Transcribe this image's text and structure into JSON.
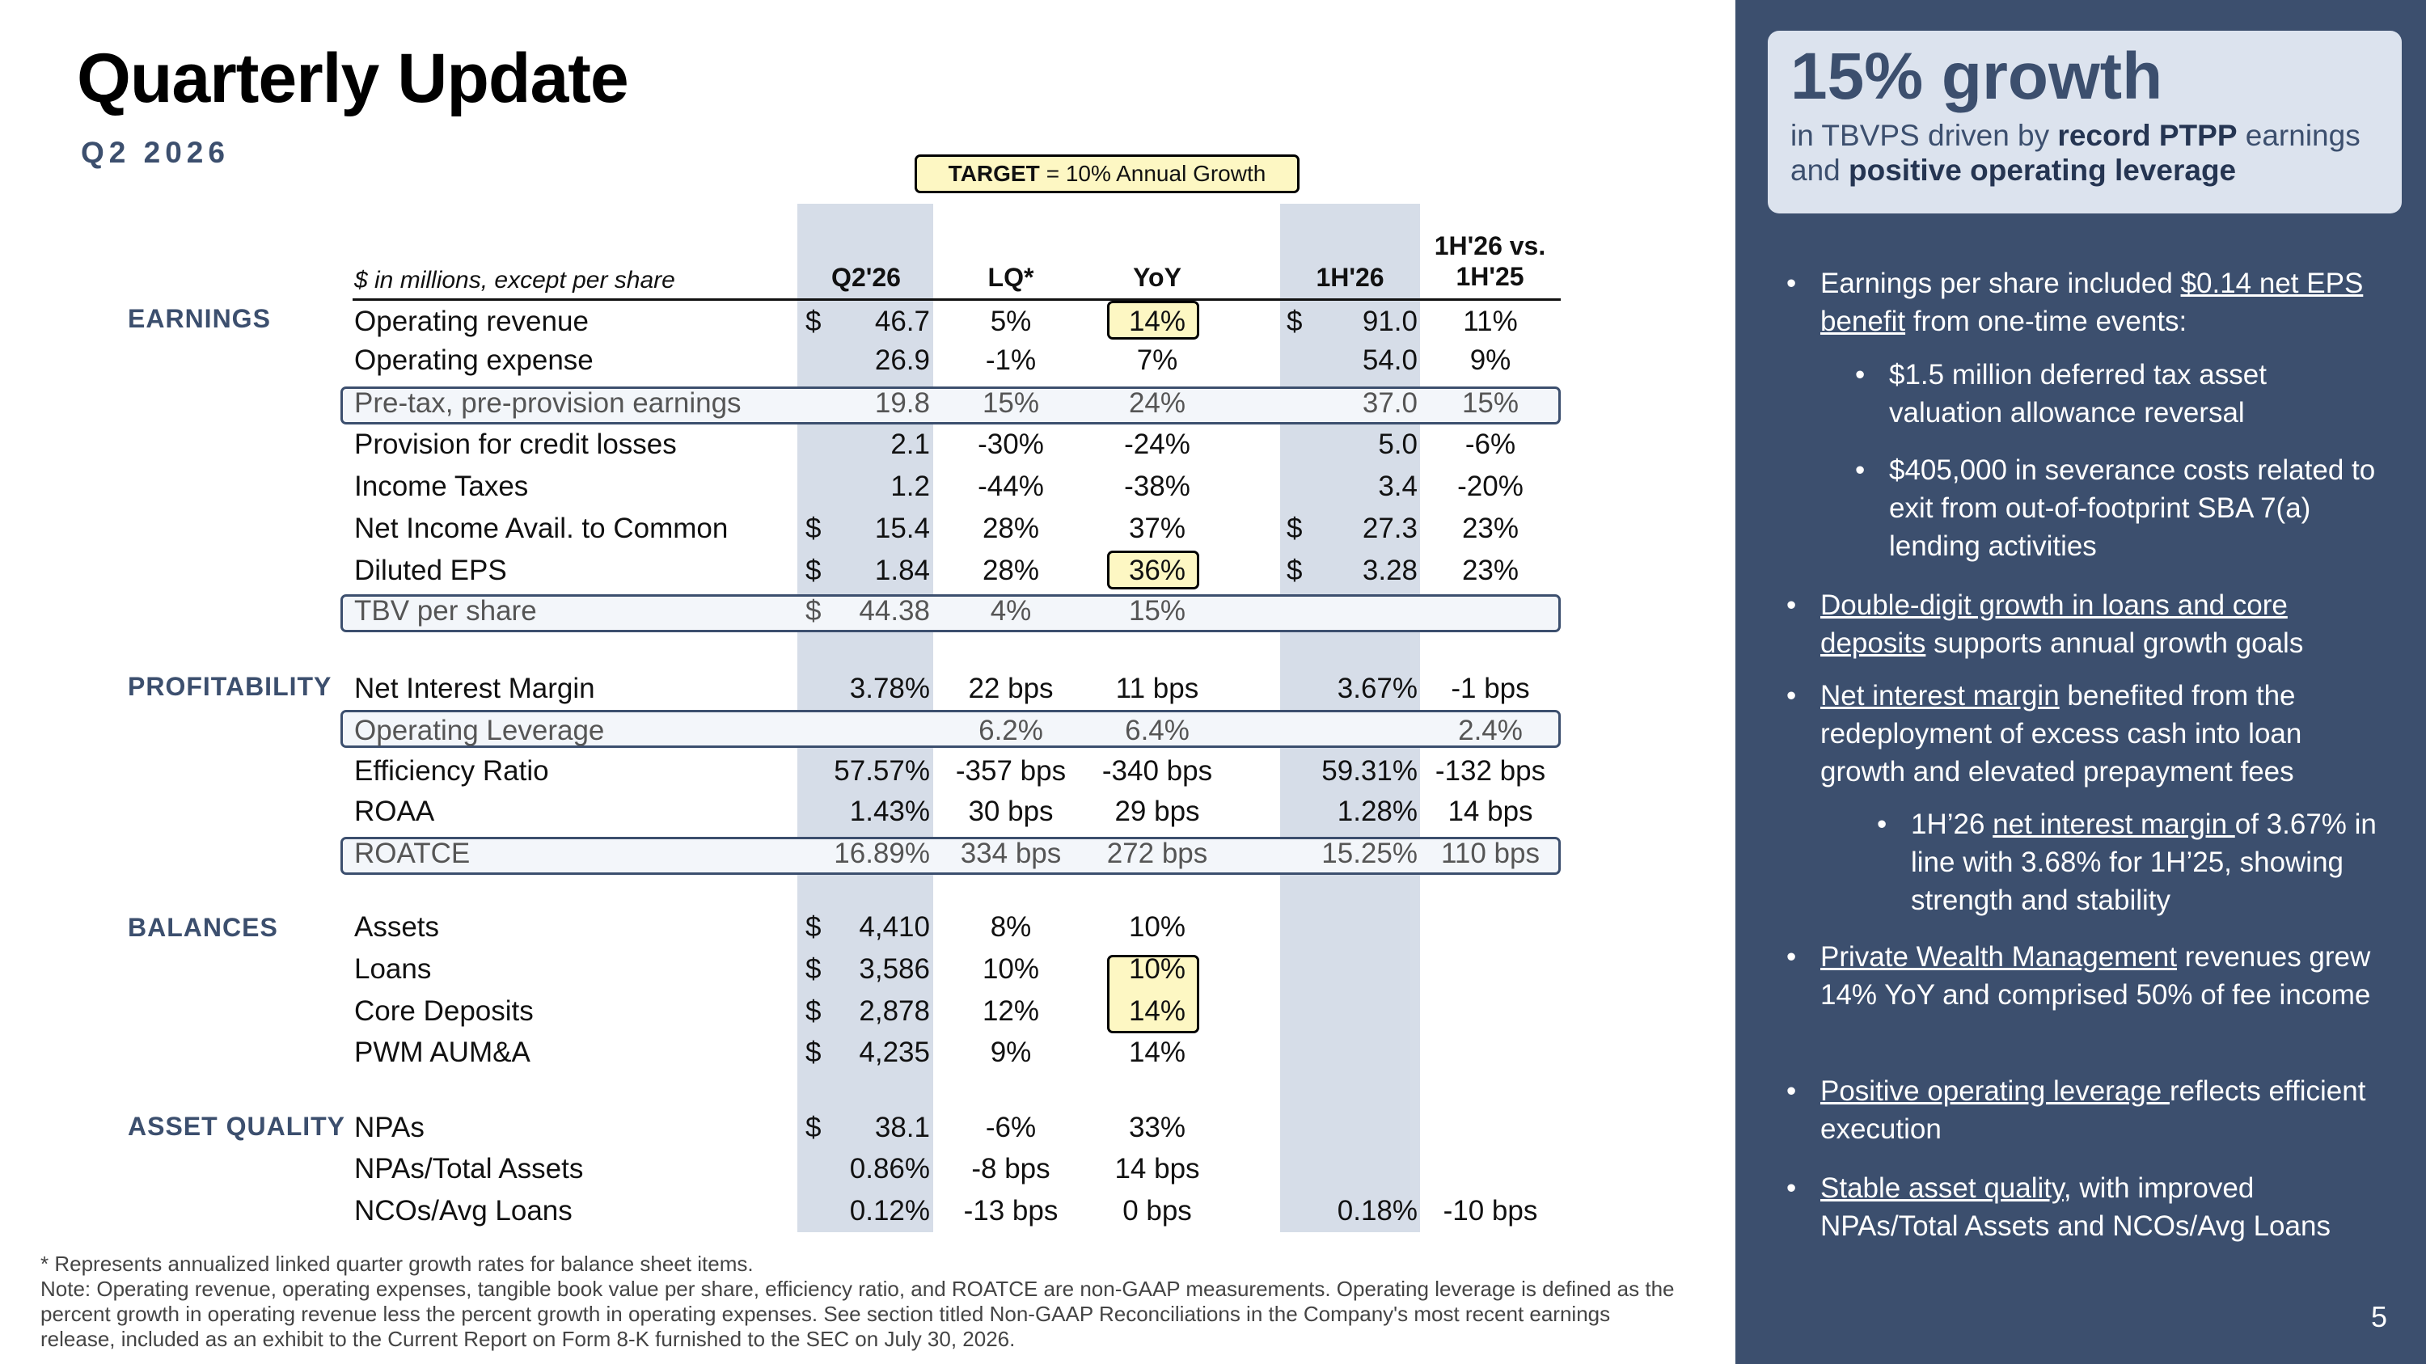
{
  "title": "Quarterly Update",
  "subtitle": "Q2 2026",
  "target": {
    "bold": "TARGET",
    "text": "= 10% Annual Growth"
  },
  "table": {
    "units": "$ in millions, except per share",
    "headers": [
      "Q2'26",
      "LQ*",
      "YoY",
      "1H'26",
      "1H'26 vs.\n1H'25"
    ],
    "sections": {
      "earnings": "EARNINGS",
      "profitability": "PROFITABILITY",
      "balances": "BALANCES",
      "asset_quality": "ASSET QUALITY"
    },
    "rows": [
      {
        "label": "Operating revenue",
        "d1": "$",
        "q": "46.7",
        "lq": "5%",
        "yoy": "14%",
        "d2": "$",
        "h": "91.0",
        "hv": "11%"
      },
      {
        "label": "Operating expense",
        "d1": "",
        "q": "26.9",
        "lq": "-1%",
        "yoy": "7%",
        "d2": "",
        "h": "54.0",
        "hv": "9%"
      },
      {
        "label": "Pre-tax, pre-provision earnings",
        "d1": "",
        "q": "19.8",
        "lq": "15%",
        "yoy": "24%",
        "d2": "",
        "h": "37.0",
        "hv": "15%"
      },
      {
        "label": "Provision for credit losses",
        "d1": "",
        "q": "2.1",
        "lq": "-30%",
        "yoy": "-24%",
        "d2": "",
        "h": "5.0",
        "hv": "-6%"
      },
      {
        "label": "Income Taxes",
        "d1": "",
        "q": "1.2",
        "lq": "-44%",
        "yoy": "-38%",
        "d2": "",
        "h": "3.4",
        "hv": "-20%"
      },
      {
        "label": "Net Income Avail. to Common",
        "d1": "$",
        "q": "15.4",
        "lq": "28%",
        "yoy": "37%",
        "d2": "$",
        "h": "27.3",
        "hv": "23%"
      },
      {
        "label": "Diluted EPS",
        "d1": "$",
        "q": "1.84",
        "lq": "28%",
        "yoy": "36%",
        "d2": "$",
        "h": "3.28",
        "hv": "23%"
      },
      {
        "label": "TBV per share",
        "d1": "$",
        "q": "44.38",
        "lq": "4%",
        "yoy": "15%",
        "d2": "",
        "h": "",
        "hv": ""
      },
      {
        "label": "Net Interest Margin",
        "d1": "",
        "q": "3.78%",
        "lq": "22 bps",
        "yoy": "11 bps",
        "d2": "",
        "h": "3.67%",
        "hv": "-1 bps"
      },
      {
        "label": "Operating Leverage",
        "d1": "",
        "q": "",
        "lq": "6.2%",
        "yoy": "6.4%",
        "d2": "",
        "h": "",
        "hv": "2.4%"
      },
      {
        "label": "Efficiency Ratio",
        "d1": "",
        "q": "57.57%",
        "lq": "-357 bps",
        "yoy": "-340 bps",
        "d2": "",
        "h": "59.31%",
        "hv": "-132 bps"
      },
      {
        "label": "ROAA",
        "d1": "",
        "q": "1.43%",
        "lq": "30 bps",
        "yoy": "29 bps",
        "d2": "",
        "h": "1.28%",
        "hv": "14 bps"
      },
      {
        "label": "ROATCE",
        "d1": "",
        "q": "16.89%",
        "lq": "334 bps",
        "yoy": "272 bps",
        "d2": "",
        "h": "15.25%",
        "hv": "110 bps"
      },
      {
        "label": "Assets",
        "d1": "$",
        "q": "4,410",
        "lq": "8%",
        "yoy": "10%",
        "d2": "",
        "h": "",
        "hv": ""
      },
      {
        "label": "Loans",
        "d1": "$",
        "q": "3,586",
        "lq": "10%",
        "yoy": "10%",
        "d2": "",
        "h": "",
        "hv": ""
      },
      {
        "label": "Core Deposits",
        "d1": "$",
        "q": "2,878",
        "lq": "12%",
        "yoy": "14%",
        "d2": "",
        "h": "",
        "hv": ""
      },
      {
        "label": "PWM AUM&A",
        "d1": "$",
        "q": "4,235",
        "lq": "9%",
        "yoy": "14%",
        "d2": "",
        "h": "",
        "hv": ""
      },
      {
        "label": "NPAs",
        "d1": "$",
        "q": "38.1",
        "lq": "-6%",
        "yoy": "33%",
        "d2": "",
        "h": "",
        "hv": ""
      },
      {
        "label": "NPAs/Total Assets",
        "d1": "",
        "q": "0.86%",
        "lq": "-8 bps",
        "yoy": "14 bps",
        "d2": "",
        "h": "",
        "hv": ""
      },
      {
        "label": "NCOs/Avg Loans",
        "d1": "",
        "q": "0.12%",
        "lq": "-13 bps",
        "yoy": "0 bps",
        "d2": "",
        "h": "0.18%",
        "hv": "-10 bps"
      }
    ]
  },
  "footnote": {
    "line1": "* Represents annualized linked quarter growth rates for balance sheet items.",
    "line2": "Note: Operating revenue, operating expenses, tangible book value per share, efficiency ratio, and ROATCE are non-GAAP measurements. Operating leverage is defined as the percent growth in operating revenue less the percent growth in operating expenses. See section titled Non-GAAP Reconciliations in the Company's most recent earnings release, included as an exhibit to the Current Report on Form 8-K furnished to the SEC on July 30, 2026."
  },
  "panel": {
    "headline": "15% growth",
    "sub": {
      "a": "in TBVPS driven by ",
      "b": "record PTPP",
      "c": " earnings and ",
      "d": "positive operating leverage"
    },
    "bullets": {
      "b1": {
        "a": "Earnings per share included ",
        "u": "$0.14 net EPS benefit",
        "c": " from one-time events:"
      },
      "b1a": "$1.5 million deferred tax asset valuation allowance reversal",
      "b1b": "$405,000 in severance costs related to exit from out-of-footprint SBA 7(a) lending activities",
      "b2": {
        "u": "Double-digit growth in loans and core deposits",
        "c": " supports annual growth goals"
      },
      "b3": {
        "u": "Net interest margin",
        "c": " benefited from the redeployment of excess cash into loan growth and elevated prepayment fees"
      },
      "b3a": {
        "a": "1H’26 ",
        "u": "net interest margin ",
        "c": "of 3.67% in line with 3.68% for 1H’25, showing strength and stability"
      },
      "b4": {
        "u": "Private Wealth Management",
        "c": " revenues grew 14% YoY and comprised 50% of fee income"
      },
      "b5": {
        "u": "Positive operating leverage ",
        "c": "reflects efficient execution"
      },
      "b6": {
        "u": "Stable asset quality",
        "c": ", with improved NPAs/Total Assets and NCOs/Avg Loans"
      }
    }
  },
  "page_number": "5",
  "colors": {
    "accent": "#3c4f6e",
    "highlight": "#fdf7c3",
    "column_shade": "#d6dde8"
  }
}
